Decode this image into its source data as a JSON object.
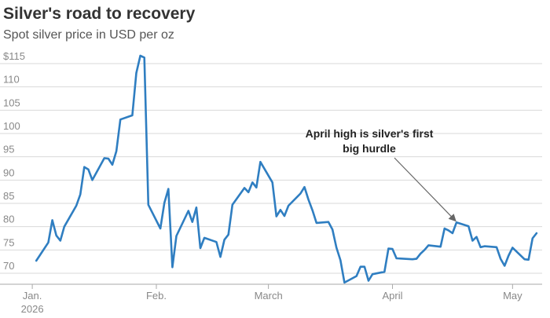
{
  "title": "Silver's road to recovery",
  "subtitle": "Spot silver price in USD per oz",
  "colors": {
    "line": "#2f7ec1",
    "grid": "#d9d9d9",
    "axis": "#aaaaaa",
    "arrow": "#666666"
  },
  "chart_data": {
    "type": "line",
    "title": "Silver's road to recovery",
    "subtitle": "Spot silver price in USD per oz",
    "xlabel": "",
    "ylabel": "",
    "ylim": [
      67,
      117
    ],
    "y_ticks": [
      70,
      75,
      80,
      85,
      90,
      95,
      100,
      105,
      110,
      115
    ],
    "y_tick_labels": [
      "70",
      "75",
      "80",
      "85",
      "90",
      "95",
      "100",
      "105",
      "110",
      "$115"
    ],
    "x_ticks": [
      {
        "date": "2026-01-01",
        "label": "Jan.",
        "label2": "2026"
      },
      {
        "date": "2026-02-01",
        "label": "Feb."
      },
      {
        "date": "2026-03-01",
        "label": "March"
      },
      {
        "date": "2026-04-01",
        "label": "April"
      },
      {
        "date": "2026-05-01",
        "label": "May"
      }
    ],
    "xlim": [
      "2025-12-31",
      "2026-05-08"
    ],
    "grid": true,
    "series": [
      {
        "values": [
          [
            "2026-01-02",
            72.7
          ],
          [
            "2026-01-05",
            76.6
          ],
          [
            "2026-01-06",
            81.4
          ],
          [
            "2026-01-07",
            78.1
          ],
          [
            "2026-01-08",
            77.0
          ],
          [
            "2026-01-09",
            80.0
          ],
          [
            "2026-01-12",
            84.5
          ],
          [
            "2026-01-13",
            86.9
          ],
          [
            "2026-01-14",
            92.8
          ],
          [
            "2026-01-15",
            92.3
          ],
          [
            "2026-01-16",
            90.0
          ],
          [
            "2026-01-19",
            94.7
          ],
          [
            "2026-01-20",
            94.6
          ],
          [
            "2026-01-21",
            93.3
          ],
          [
            "2026-01-22",
            96.2
          ],
          [
            "2026-01-23",
            103.0
          ],
          [
            "2026-01-26",
            103.9
          ],
          [
            "2026-01-27",
            113.0
          ],
          [
            "2026-01-28",
            116.7
          ],
          [
            "2026-01-29",
            116.3
          ],
          [
            "2026-01-30",
            84.7
          ],
          [
            "2026-02-02",
            79.6
          ],
          [
            "2026-02-03",
            85.1
          ],
          [
            "2026-02-04",
            88.1
          ],
          [
            "2026-02-05",
            71.3
          ],
          [
            "2026-02-06",
            78.0
          ],
          [
            "2026-02-09",
            83.4
          ],
          [
            "2026-02-10",
            81.0
          ],
          [
            "2026-02-11",
            84.1
          ],
          [
            "2026-02-12",
            75.4
          ],
          [
            "2026-02-13",
            77.6
          ],
          [
            "2026-02-16",
            76.7
          ],
          [
            "2026-02-17",
            73.5
          ],
          [
            "2026-02-18",
            77.2
          ],
          [
            "2026-02-19",
            78.3
          ],
          [
            "2026-02-20",
            84.7
          ],
          [
            "2026-02-23",
            88.3
          ],
          [
            "2026-02-24",
            87.4
          ],
          [
            "2026-02-25",
            89.5
          ],
          [
            "2026-02-26",
            88.4
          ],
          [
            "2026-02-27",
            93.9
          ],
          [
            "2026-03-02",
            89.5
          ],
          [
            "2026-03-03",
            82.2
          ],
          [
            "2026-03-04",
            83.6
          ],
          [
            "2026-03-05",
            82.3
          ],
          [
            "2026-03-06",
            84.5
          ],
          [
            "2026-03-09",
            87.1
          ],
          [
            "2026-03-10",
            88.5
          ],
          [
            "2026-03-11",
            85.8
          ],
          [
            "2026-03-12",
            83.5
          ],
          [
            "2026-03-13",
            80.8
          ],
          [
            "2026-03-16",
            81.0
          ],
          [
            "2026-03-17",
            79.4
          ],
          [
            "2026-03-18",
            75.5
          ],
          [
            "2026-03-19",
            72.8
          ],
          [
            "2026-03-20",
            68.0
          ],
          [
            "2026-03-23",
            69.4
          ],
          [
            "2026-03-24",
            71.4
          ],
          [
            "2026-03-25",
            71.4
          ],
          [
            "2026-03-26",
            68.4
          ],
          [
            "2026-03-27",
            69.8
          ],
          [
            "2026-03-30",
            70.3
          ],
          [
            "2026-03-31",
            75.3
          ],
          [
            "2026-04-01",
            75.2
          ],
          [
            "2026-04-02",
            73.2
          ],
          [
            "2026-04-06",
            73.0
          ],
          [
            "2026-04-07",
            73.1
          ],
          [
            "2026-04-08",
            74.2
          ],
          [
            "2026-04-09",
            75.0
          ],
          [
            "2026-04-10",
            76.0
          ],
          [
            "2026-04-13",
            75.7
          ],
          [
            "2026-04-14",
            79.6
          ],
          [
            "2026-04-15",
            79.2
          ],
          [
            "2026-04-16",
            78.6
          ],
          [
            "2026-04-17",
            80.9
          ],
          [
            "2026-04-20",
            80.1
          ],
          [
            "2026-04-21",
            77.0
          ],
          [
            "2026-04-22",
            77.8
          ],
          [
            "2026-04-23",
            75.6
          ],
          [
            "2026-04-24",
            75.8
          ],
          [
            "2026-04-27",
            75.6
          ],
          [
            "2026-04-28",
            73.1
          ],
          [
            "2026-04-29",
            71.6
          ],
          [
            "2026-04-30",
            73.8
          ],
          [
            "2026-05-01",
            75.5
          ],
          [
            "2026-05-04",
            73.0
          ],
          [
            "2026-05-05",
            72.9
          ],
          [
            "2026-05-06",
            77.5
          ],
          [
            "2026-05-07",
            78.6
          ]
        ]
      }
    ],
    "annotations": [
      {
        "lines": [
          "April high is silver's first",
          "big hurdle"
        ],
        "target": [
          "2026-04-16",
          79.2
        ]
      }
    ]
  }
}
